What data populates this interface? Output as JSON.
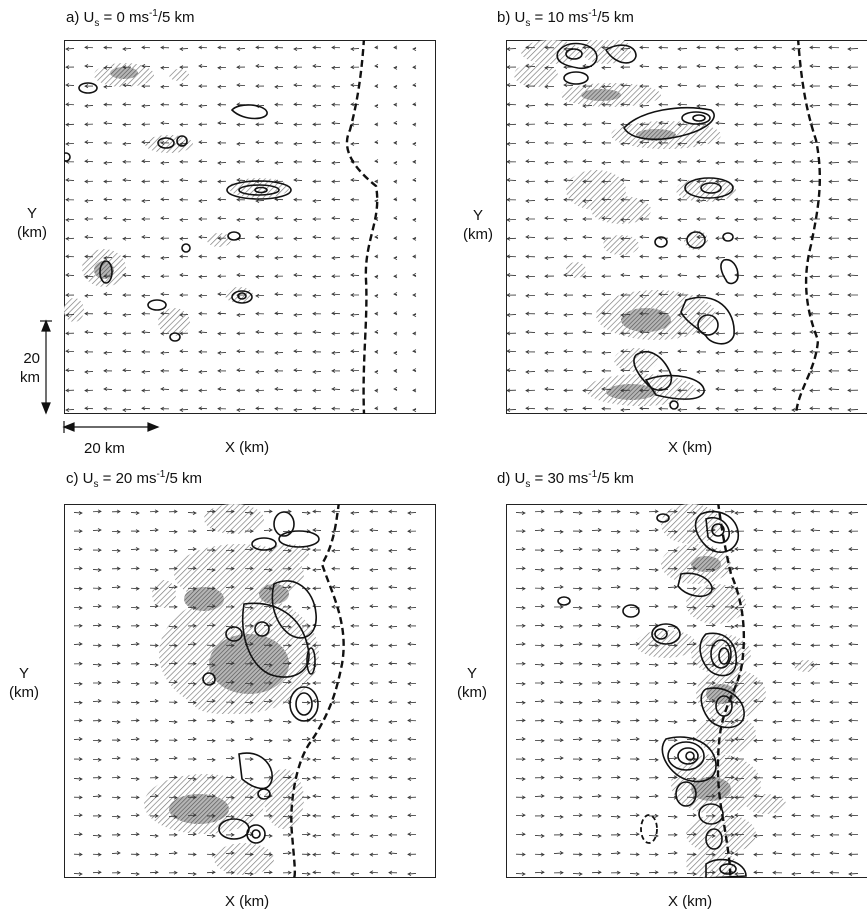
{
  "panels": [
    {
      "id": "a",
      "prefix": "a) U",
      "sub": "s",
      "middle": " = 0 ms",
      "sup": "-1",
      "suffix": "/5 km",
      "ylabel_line1": "Y",
      "ylabel_line2": "(km)",
      "xlabel": "X (km)",
      "mean_wind": 0
    },
    {
      "id": "b",
      "prefix": "b) U",
      "sub": "s",
      "middle": " = 10 ms",
      "sup": "-1",
      "suffix": "/5 km",
      "ylabel_line1": "Y",
      "ylabel_line2": "(km)",
      "xlabel": "X (km)",
      "mean_wind": 10
    },
    {
      "id": "c",
      "prefix": "c) U",
      "sub": "s",
      "middle": " = 20 ms",
      "sup": "-1",
      "suffix": "/5 km",
      "ylabel_line1": "Y",
      "ylabel_line2": "(km)",
      "xlabel": "X (km)",
      "mean_wind": 20
    },
    {
      "id": "d",
      "prefix": "d) U",
      "sub": "s",
      "middle": " = 30 ms",
      "sup": "-1",
      "suffix": "/5 km",
      "ylabel_line1": "Y",
      "ylabel_line2": "(km)",
      "xlabel": "X (km)",
      "mean_wind": 30
    }
  ],
  "scale_bars": {
    "vertical_value": "20",
    "vertical_unit": "km",
    "horizontal_label": "20 km"
  },
  "colors": {
    "line": "#111111",
    "shading_hatch": "#6e6e6e",
    "shading_dense": "#8a8a8a",
    "vector": "#333333"
  }
}
